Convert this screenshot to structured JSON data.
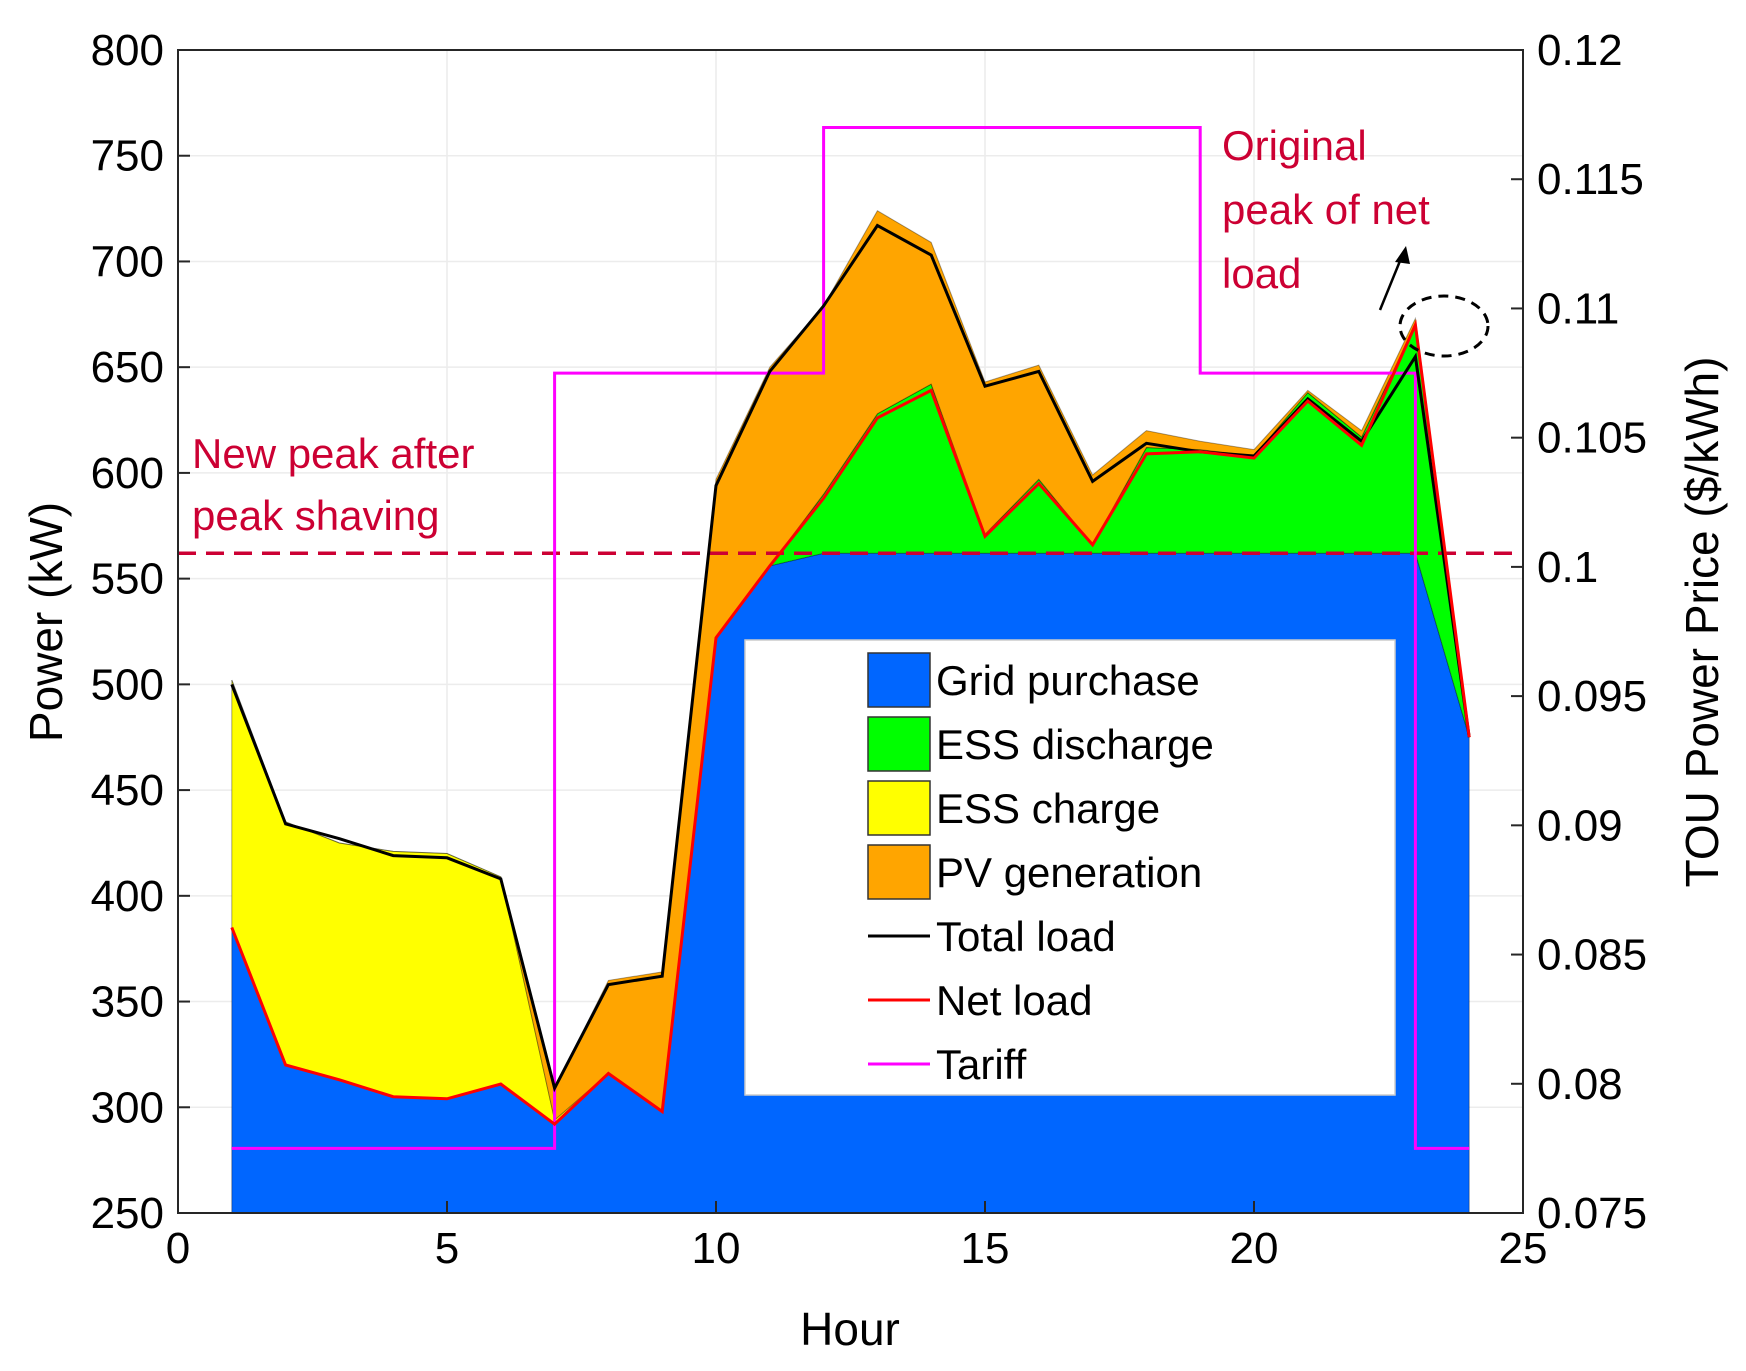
{
  "chart_data": {
    "type": "area",
    "title": "",
    "xlabel": "Hour",
    "ylabel": "Power (kW)",
    "y2label": "TOU Power Price ($/kWh)",
    "xlim": [
      0,
      25
    ],
    "ylim": [
      250,
      800
    ],
    "y2lim": [
      0.075,
      0.12
    ],
    "xticks": [
      "0",
      "5",
      "10",
      "15",
      "20",
      "25"
    ],
    "yticks": [
      "250",
      "300",
      "350",
      "400",
      "450",
      "500",
      "550",
      "600",
      "650",
      "700",
      "750",
      "800"
    ],
    "y2ticks": [
      "0.075",
      "0.08",
      "0.085",
      "0.09",
      "0.095",
      "0.1",
      "0.105",
      "0.11",
      "0.115",
      "0.12"
    ],
    "grid": true,
    "hours": [
      1,
      2,
      3,
      4,
      5,
      6,
      7,
      8,
      9,
      10,
      11,
      12,
      13,
      14,
      15,
      16,
      17,
      18,
      19,
      20,
      21,
      22,
      23,
      24
    ],
    "series": [
      {
        "name": "Grid purchase",
        "color": "#0066ff",
        "values": [
          385,
          320,
          313,
          305,
          304,
          311,
          292,
          316,
          298,
          522,
          556,
          562,
          562,
          562,
          562,
          562,
          562,
          562,
          562,
          562,
          562,
          562,
          562,
          475
        ]
      },
      {
        "name": "ESS discharge",
        "color": "#00ff00",
        "values": [
          0,
          0,
          0,
          0,
          0,
          0,
          0,
          0,
          0,
          0,
          0,
          28,
          66,
          80,
          9,
          35,
          4,
          50,
          49,
          46,
          76,
          55,
          108,
          0
        ]
      },
      {
        "name": "ESS charge",
        "color": "#ffff00",
        "values": [
          117,
          115,
          112,
          116,
          116,
          98,
          2,
          0,
          0,
          0,
          0,
          0,
          0,
          0,
          0,
          0,
          0,
          0,
          0,
          0,
          0,
          0,
          0,
          0
        ]
      },
      {
        "name": "PV generation",
        "color": "#ffa500",
        "values": [
          0,
          0,
          0,
          0,
          0,
          0,
          15,
          44,
          66,
          75,
          94,
          89,
          96,
          67,
          72,
          54,
          33,
          8,
          4,
          3,
          1,
          3,
          3,
          1
        ]
      },
      {
        "name": "Total load",
        "color": "#000000",
        "type": "line",
        "values": [
          500,
          434,
          427,
          419,
          418,
          408,
          309,
          358,
          362,
          594,
          648,
          679,
          717,
          703,
          641,
          648,
          596,
          614,
          610,
          608,
          635,
          615,
          655,
          475
        ]
      },
      {
        "name": "Net load",
        "color": "#ff0000",
        "type": "line",
        "values": [
          385,
          320,
          313,
          305,
          304,
          311,
          292,
          316,
          298,
          522,
          556,
          588,
          626,
          639,
          570,
          595,
          566,
          609,
          610,
          607,
          634,
          613,
          670,
          475
        ]
      },
      {
        "name": "Tariff",
        "color": "#ff00ff",
        "type": "step",
        "axis": "right",
        "x": [
          1,
          7,
          7,
          12,
          12,
          19,
          19,
          23,
          23,
          24
        ],
        "values": [
          0.0775,
          0.0775,
          0.1075,
          0.1075,
          0.117,
          0.117,
          0.1075,
          0.1075,
          0.0775,
          0.0775
        ]
      }
    ],
    "reference_line": {
      "value": 562,
      "color": "#cc0033",
      "style": "dashed"
    },
    "annotations": [
      {
        "id": "new-peak",
        "lines": [
          "New peak after",
          "peak shaving"
        ],
        "color": "#cc0033"
      },
      {
        "id": "original-peak",
        "lines": [
          "Original",
          "peak of net",
          "load"
        ],
        "color": "#cc0033"
      }
    ],
    "legend": {
      "placement": "inside-center",
      "entries": [
        "Grid purchase",
        "ESS discharge",
        "ESS charge",
        "PV generation",
        "Total load",
        "Net load",
        "Tariff"
      ]
    }
  }
}
